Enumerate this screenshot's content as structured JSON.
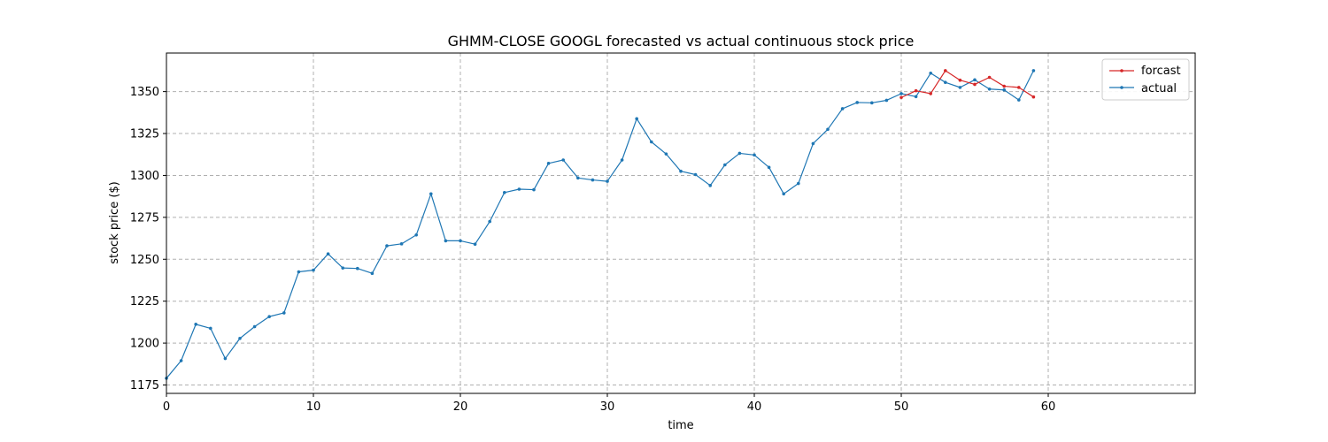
{
  "chart_data": {
    "type": "line",
    "title": "GHMM-CLOSE GOOGL forecasted vs actual continuous stock price",
    "xlabel": "time",
    "ylabel": "stock price ($)",
    "xlim": [
      0,
      70
    ],
    "ylim": [
      1170,
      1373
    ],
    "xticks": [
      0,
      10,
      20,
      30,
      40,
      50,
      60
    ],
    "yticks": [
      1175,
      1200,
      1225,
      1250,
      1275,
      1300,
      1325,
      1350
    ],
    "grid": true,
    "legend_position": "top-right",
    "series": [
      {
        "name": "forcast",
        "color": "#d62728",
        "x": [
          50,
          51,
          52,
          53,
          54,
          55,
          56,
          57,
          58,
          59
        ],
        "y": [
          1346.5,
          1350.5,
          1348.8,
          1362.5,
          1356.8,
          1354.3,
          1358.5,
          1353.2,
          1352.5,
          1346.8
        ]
      },
      {
        "name": "actual",
        "color": "#1f77b4",
        "x": [
          0,
          1,
          2,
          3,
          4,
          5,
          6,
          7,
          8,
          9,
          10,
          11,
          12,
          13,
          14,
          15,
          16,
          17,
          18,
          19,
          20,
          21,
          22,
          23,
          24,
          25,
          26,
          27,
          28,
          29,
          30,
          31,
          32,
          33,
          34,
          35,
          36,
          37,
          38,
          39,
          40,
          41,
          42,
          43,
          44,
          45,
          46,
          47,
          48,
          49,
          50,
          51,
          52,
          53,
          54,
          55,
          56,
          57,
          58,
          59
        ],
        "y": [
          1179.0,
          1189.5,
          1211.2,
          1208.8,
          1190.8,
          1202.8,
          1209.8,
          1215.8,
          1218.0,
          1242.5,
          1243.5,
          1253.2,
          1244.8,
          1244.5,
          1241.6,
          1258.0,
          1259.2,
          1264.5,
          1289.0,
          1261.0,
          1261.0,
          1259.0,
          1272.5,
          1289.8,
          1291.8,
          1291.5,
          1307.2,
          1309.2,
          1298.5,
          1297.3,
          1296.5,
          1309.2,
          1333.8,
          1320.0,
          1312.8,
          1302.5,
          1300.5,
          1294.0,
          1306.3,
          1313.2,
          1312.2,
          1304.8,
          1289.0,
          1295.2,
          1319.0,
          1327.5,
          1339.8,
          1343.5,
          1343.3,
          1344.8,
          1348.8,
          1347.0,
          1361.0,
          1355.5,
          1352.5,
          1357.0,
          1351.5,
          1351.0,
          1345.0,
          1362.5
        ]
      }
    ]
  }
}
